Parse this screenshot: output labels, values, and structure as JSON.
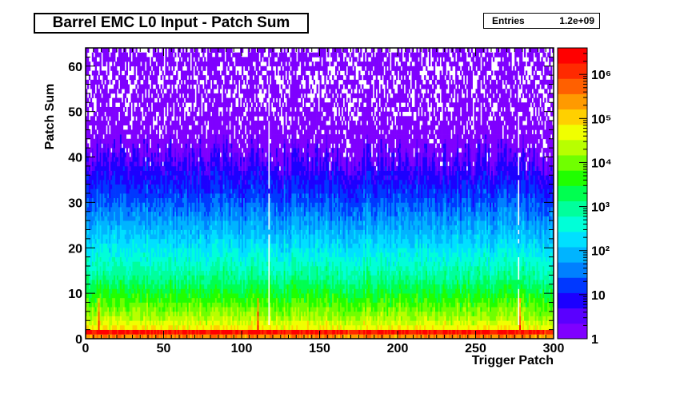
{
  "chart_data": {
    "type": "heatmap",
    "title": "Barrel EMC L0 Input - Patch Sum",
    "xlabel": "Trigger Patch",
    "ylabel": "Patch Sum",
    "xlim": [
      0,
      300
    ],
    "ylim": [
      0,
      64
    ],
    "x_ticks": [
      0,
      50,
      100,
      150,
      200,
      250,
      300
    ],
    "y_ticks": [
      0,
      10,
      20,
      30,
      40,
      50,
      60
    ],
    "z_scale": "log",
    "z_range": [
      1,
      4000000
    ],
    "z_tick_labels": [
      "1",
      "10",
      "10²",
      "10³",
      "10⁴",
      "10⁵",
      "10⁶"
    ],
    "z_ticks": [
      1,
      10,
      100,
      1000,
      10000,
      100000,
      1000000
    ],
    "stats": {
      "entries_label": "Entries",
      "entries_value": "1.2e+09"
    },
    "description_profile": {
      "peak_bin_y": 1,
      "peak_counts": 2000000,
      "counts_vs_patch_sum": [
        [
          0,
          300000
        ],
        [
          1,
          2000000
        ],
        [
          2,
          60000
        ],
        [
          4,
          20000
        ],
        [
          6,
          10000
        ],
        [
          8,
          5000
        ],
        [
          10,
          2500
        ],
        [
          14,
          800
        ],
        [
          18,
          300
        ],
        [
          22,
          120
        ],
        [
          26,
          50
        ],
        [
          30,
          20
        ],
        [
          34,
          9
        ],
        [
          38,
          5
        ],
        [
          42,
          3
        ],
        [
          46,
          2
        ],
        [
          50,
          1.5
        ],
        [
          56,
          1.2
        ],
        [
          62,
          1.5
        ]
      ],
      "dead_patches": [
        117,
        277
      ],
      "hot_patches": [
        8,
        110,
        278
      ]
    },
    "palette": [
      "#7f00ff",
      "#5a00ff",
      "#1c00ff",
      "#0038ff",
      "#0080ff",
      "#00b4ff",
      "#00e0ff",
      "#00ffd8",
      "#00ff9c",
      "#00ff50",
      "#20ff00",
      "#70ff00",
      "#b8ff00",
      "#f0ff00",
      "#ffd000",
      "#ff9a00",
      "#ff6000",
      "#ff2a00",
      "#ff0000"
    ]
  }
}
